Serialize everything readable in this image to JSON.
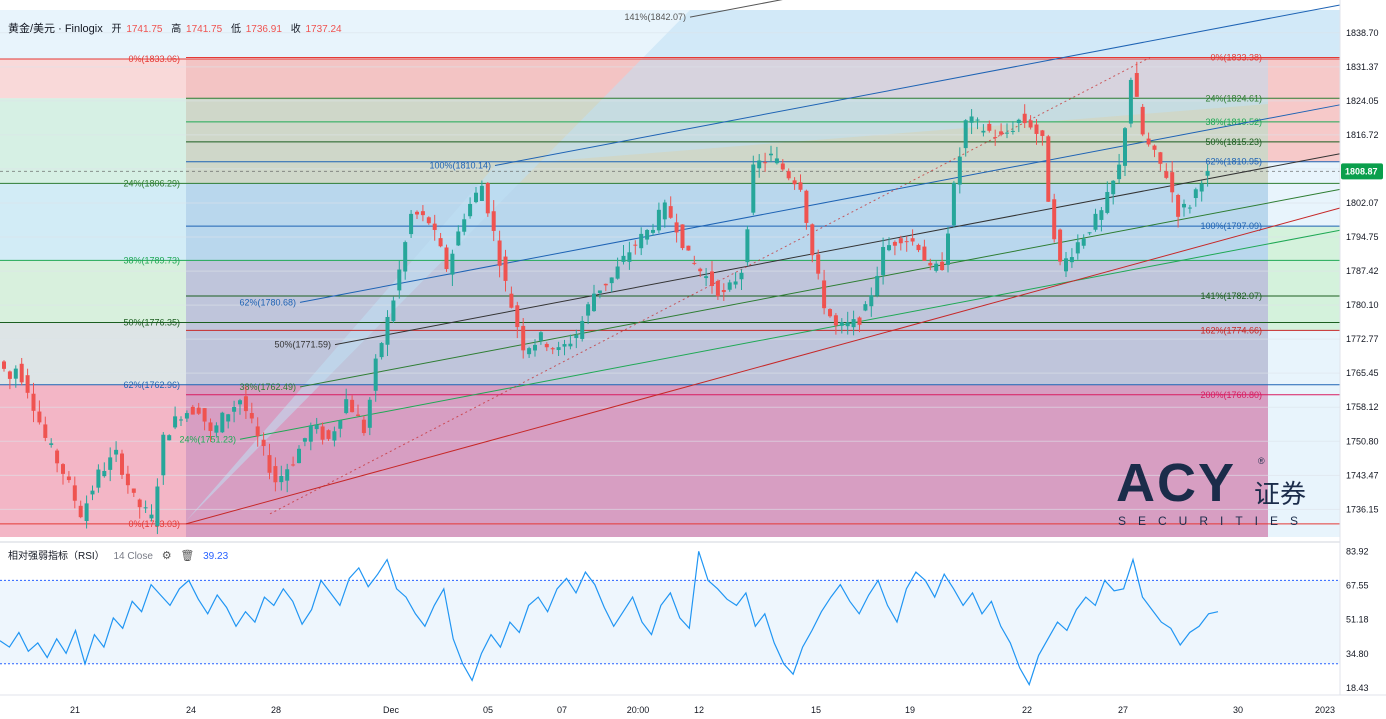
{
  "legend": {
    "symbol": "黄金/美元 · Finlogix",
    "open_label": "开",
    "open": "1741.75",
    "high_label": "高",
    "high": "1741.75",
    "low_label": "低",
    "low": "1736.91",
    "close_label": "收",
    "close": "1737.24"
  },
  "rsi_legend": {
    "name": "相对强弱指标（RSI）",
    "params": "14 Close",
    "settings_icon": "gear-icon",
    "delete_icon": "trash-icon",
    "value": "39.23"
  },
  "logo": {
    "text": "ACY",
    "chinese": "证券",
    "sub": "SECURITIES",
    "reg": "®"
  },
  "chart_data": [
    {
      "type": "candlestick",
      "title": "",
      "instrument": "黄金/美元 · Finlogix",
      "ylim": [
        1730.2,
        1843.6
      ],
      "price_axis_ticks": [
        "1838.70",
        "1831.37",
        "1824.05",
        "1816.72",
        "1809.40",
        "1802.07",
        "1794.75",
        "1787.42",
        "1780.10",
        "1772.77",
        "1765.45",
        "1758.12",
        "1750.80",
        "1743.47",
        "1736.15"
      ],
      "current_price": "1808.87",
      "current_price_color": "#0a9f4c",
      "x_tick_labels": [
        "21",
        "24",
        "28",
        "Dec",
        "05",
        "07",
        "20:00",
        "12",
        "15",
        "19",
        "22",
        "27",
        "30",
        "2023"
      ],
      "price_path": [
        {
          "t": 0,
          "p": 1768.0
        },
        {
          "t": 2,
          "p": 1764.0
        },
        {
          "t": 3,
          "p": 1767.0
        },
        {
          "t": 5,
          "p": 1762.0
        },
        {
          "t": 8,
          "p": 1751.0
        },
        {
          "t": 11,
          "p": 1744.0
        },
        {
          "t": 14,
          "p": 1735.0
        },
        {
          "t": 17,
          "p": 1744.0
        },
        {
          "t": 20,
          "p": 1748.0
        },
        {
          "t": 23,
          "p": 1738.0
        },
        {
          "t": 26,
          "p": 1734.0
        },
        {
          "t": 28,
          "p": 1752.0
        },
        {
          "t": 31,
          "p": 1757.0
        },
        {
          "t": 34,
          "p": 1758.0
        },
        {
          "t": 36,
          "p": 1752.0
        },
        {
          "t": 38,
          "p": 1756.0
        },
        {
          "t": 41,
          "p": 1760.0
        },
        {
          "t": 44,
          "p": 1751.0
        },
        {
          "t": 47,
          "p": 1742.0
        },
        {
          "t": 50,
          "p": 1747.0
        },
        {
          "t": 53,
          "p": 1754.0
        },
        {
          "t": 56,
          "p": 1751.0
        },
        {
          "t": 59,
          "p": 1760.0
        },
        {
          "t": 62,
          "p": 1753.0
        },
        {
          "t": 64,
          "p": 1768.0
        },
        {
          "t": 67,
          "p": 1782.0
        },
        {
          "t": 70,
          "p": 1800.0
        },
        {
          "t": 73,
          "p": 1798.0
        },
        {
          "t": 76,
          "p": 1788.0
        },
        {
          "t": 79,
          "p": 1800.0
        },
        {
          "t": 82,
          "p": 1806.0
        },
        {
          "t": 84,
          "p": 1795.0
        },
        {
          "t": 86,
          "p": 1784.0
        },
        {
          "t": 89,
          "p": 1771.0
        },
        {
          "t": 92,
          "p": 1773.0
        },
        {
          "t": 95,
          "p": 1770.0
        },
        {
          "t": 98,
          "p": 1774.0
        },
        {
          "t": 101,
          "p": 1783.0
        },
        {
          "t": 104,
          "p": 1786.0
        },
        {
          "t": 107,
          "p": 1792.0
        },
        {
          "t": 110,
          "p": 1796.0
        },
        {
          "t": 113,
          "p": 1801.0
        },
        {
          "t": 115,
          "p": 1797.0
        },
        {
          "t": 117,
          "p": 1790.0
        },
        {
          "t": 120,
          "p": 1786.0
        },
        {
          "t": 123,
          "p": 1782.0
        },
        {
          "t": 126,
          "p": 1788.0
        },
        {
          "t": 128,
          "p": 1810.0
        },
        {
          "t": 131,
          "p": 1812.0
        },
        {
          "t": 134,
          "p": 1808.0
        },
        {
          "t": 136,
          "p": 1806.0
        },
        {
          "t": 138,
          "p": 1790.0
        },
        {
          "t": 140,
          "p": 1780.0
        },
        {
          "t": 142,
          "p": 1775.0
        },
        {
          "t": 145,
          "p": 1776.0
        },
        {
          "t": 147,
          "p": 1779.0
        },
        {
          "t": 150,
          "p": 1792.0
        },
        {
          "t": 153,
          "p": 1795.0
        },
        {
          "t": 156,
          "p": 1793.0
        },
        {
          "t": 158,
          "p": 1787.0
        },
        {
          "t": 160,
          "p": 1789.0
        },
        {
          "t": 162,
          "p": 1806.0
        },
        {
          "t": 164,
          "p": 1820.0
        },
        {
          "t": 167,
          "p": 1818.0
        },
        {
          "t": 170,
          "p": 1816.0
        },
        {
          "t": 173,
          "p": 1820.0
        },
        {
          "t": 175,
          "p": 1819.0
        },
        {
          "t": 177,
          "p": 1815.0
        },
        {
          "t": 178,
          "p": 1802.0
        },
        {
          "t": 180,
          "p": 1788.0
        },
        {
          "t": 182,
          "p": 1792.0
        },
        {
          "t": 185,
          "p": 1797.0
        },
        {
          "t": 187,
          "p": 1800.0
        },
        {
          "t": 190,
          "p": 1810.0
        },
        {
          "t": 192,
          "p": 1830.0
        },
        {
          "t": 194,
          "p": 1816.0
        },
        {
          "t": 196,
          "p": 1812.0
        },
        {
          "t": 198,
          "p": 1808.0
        },
        {
          "t": 200,
          "p": 1800.0
        },
        {
          "t": 202,
          "p": 1802.0
        },
        {
          "t": 204,
          "p": 1808.0
        }
      ],
      "fib_levels": [
        {
          "label": "0%(1833.06)",
          "price": 1833.06,
          "side": "left"
        },
        {
          "label": "24%(1806.29)",
          "price": 1806.29,
          "side": "left"
        },
        {
          "label": "38%(1789.73)",
          "price": 1789.73,
          "side": "left"
        },
        {
          "label": "50%(1776.35)",
          "price": 1776.35,
          "side": "left"
        },
        {
          "label": "62%(1762.96)",
          "price": 1762.96,
          "side": "left"
        },
        {
          "label": "0%(1733.03)",
          "price": 1733.03,
          "side": "left"
        },
        {
          "label": "0%(1833.38)",
          "price": 1833.38,
          "side": "right"
        },
        {
          "label": "24%(1824.61)",
          "price": 1824.61,
          "side": "right"
        },
        {
          "label": "38%(1819.52)",
          "price": 1819.52,
          "side": "right"
        },
        {
          "label": "50%(1815.23)",
          "price": 1815.23,
          "side": "right"
        },
        {
          "label": "62%(1810.95)",
          "price": 1810.95,
          "side": "right"
        },
        {
          "label": "100%(1797.09)",
          "price": 1797.09,
          "side": "right"
        },
        {
          "label": "141%(1782.07)",
          "price": 1782.07,
          "side": "right"
        },
        {
          "label": "162%(1774.66)",
          "price": 1774.66,
          "side": "right"
        },
        {
          "label": "200%(1760.80)",
          "price": 1760.8,
          "side": "right"
        }
      ],
      "fan_labels": [
        {
          "label": "141%(1842.07)",
          "price": 1842.07
        },
        {
          "label": "100%(1810.14)",
          "price": 1810.14
        },
        {
          "label": "62%(1780.68)",
          "price": 1780.68
        },
        {
          "label": "50%(1771.59)",
          "price": 1771.59
        },
        {
          "label": "38%(1762.49)",
          "price": 1762.49
        },
        {
          "label": "24%(1751.23)",
          "price": 1751.23
        }
      ],
      "grid": true,
      "legend_placement": "top-left"
    },
    {
      "type": "line",
      "title": "相对强弱指标（RSI）",
      "ylim": [
        15.0,
        87.0
      ],
      "rsi_axis_ticks": [
        "83.92",
        "67.55",
        "51.18",
        "34.80",
        "18.43"
      ],
      "bands": [
        70,
        30
      ],
      "current_value": "39.23",
      "series": [
        {
          "values": [
            41,
            38,
            45,
            36,
            40,
            33,
            42,
            35,
            46,
            30,
            44,
            38,
            52,
            47,
            60,
            55,
            68,
            63,
            58,
            66,
            70,
            61,
            54,
            63,
            57,
            48,
            55,
            50,
            62,
            58,
            66,
            60,
            49,
            56,
            70,
            64,
            58,
            71,
            76,
            67,
            73,
            80,
            66,
            62,
            54,
            48,
            58,
            66,
            42,
            30,
            22,
            35,
            44,
            38,
            50,
            45,
            58,
            62,
            55,
            66,
            71,
            64,
            74,
            68,
            57,
            48,
            55,
            62,
            50,
            44,
            58,
            64,
            52,
            47,
            84,
            70,
            66,
            61,
            58,
            64,
            48,
            54,
            40,
            30,
            25,
            38,
            46,
            55,
            62,
            68,
            60,
            54,
            63,
            70,
            58,
            50,
            66,
            74,
            70,
            62,
            73,
            66,
            58,
            64,
            54,
            60,
            48,
            40,
            28,
            20,
            34,
            42,
            50,
            46,
            56,
            62,
            58,
            70,
            65,
            66,
            80,
            62,
            56,
            50,
            47,
            39,
            45,
            48,
            54,
            55
          ]
        }
      ]
    }
  ]
}
